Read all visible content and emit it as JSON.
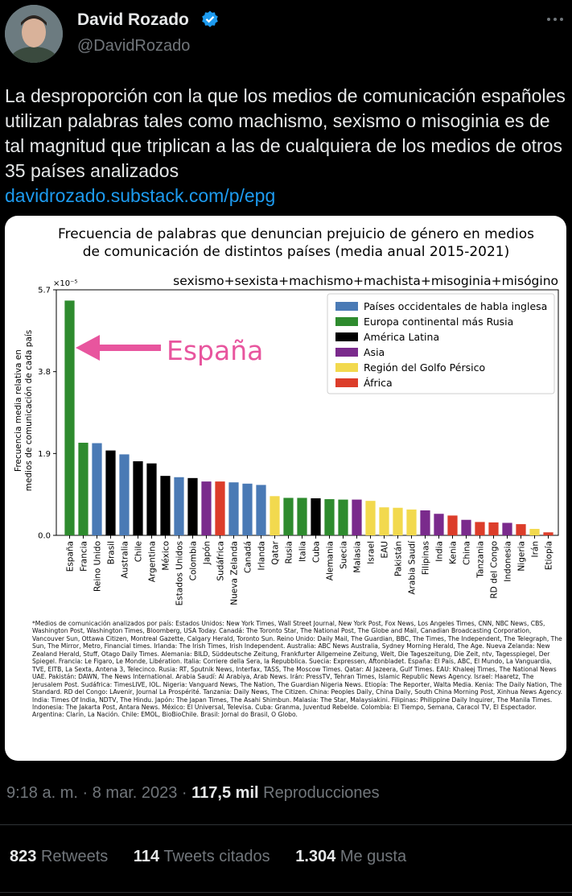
{
  "header": {
    "display_name": "David Rozado",
    "handle": "@DavidRozado",
    "avatar_icon": "avatar-photo",
    "verified_icon": "verified-badge-icon",
    "more_icon": "more-options-icon"
  },
  "tweet": {
    "text": "La desproporción con la que los medios de comunicación españoles utilizan palabras tales como machismo, sexismo o misoginia es de tal magnitud que triplican a las de cualquiera de los medios de otros 35 países analizados",
    "link": "davidrozado.substack.com/p/epg",
    "link_color": "#1d9bf0"
  },
  "chart_data": {
    "type": "bar",
    "title_line1": "Frecuencia de palabras que denuncian prejuicio de género en medios",
    "title_line2": "de comunicación de distintos países (media anual 2015-2021)",
    "subtitle": "sexismo+sexista+machismo+machista+misoginia+misógino",
    "ylabel_line1": "Frecuencia media relativa en",
    "ylabel_line2": "medios de comunicación de cada país",
    "yexp": "×10⁻⁵",
    "yticks": [
      "0.0",
      "1.9",
      "3.8",
      "5.7"
    ],
    "ylim": [
      0,
      5.7
    ],
    "annotation": "España",
    "categories": [
      "España",
      "Francia",
      "Reino Unido",
      "Brasil",
      "Australia",
      "Chile",
      "Argentina",
      "México",
      "Estados Unidos",
      "Colombia",
      "Japón",
      "Sudáfrica",
      "Nueva Zelanda",
      "Canadá",
      "Irlanda",
      "Qatar",
      "Rusia",
      "Italia",
      "Cuba",
      "Alemania",
      "Suecia",
      "Malasia",
      "Israel",
      "EAU",
      "Pakistán",
      "Arabia Saudí",
      "Filipinas",
      "India",
      "Kenia",
      "China",
      "Tanzania",
      "RD del Congo",
      "Indonesia",
      "Nigeria",
      "Irán",
      "Etiopía"
    ],
    "values": [
      5.45,
      2.15,
      2.14,
      1.97,
      1.88,
      1.72,
      1.67,
      1.38,
      1.35,
      1.33,
      1.25,
      1.25,
      1.23,
      1.2,
      1.17,
      0.91,
      0.87,
      0.87,
      0.86,
      0.84,
      0.83,
      0.83,
      0.8,
      0.65,
      0.64,
      0.6,
      0.58,
      0.5,
      0.46,
      0.36,
      0.31,
      0.3,
      0.29,
      0.26,
      0.15,
      0.07
    ],
    "groups": [
      1,
      1,
      0,
      2,
      0,
      2,
      2,
      2,
      0,
      2,
      3,
      5,
      0,
      0,
      0,
      4,
      1,
      1,
      2,
      1,
      1,
      3,
      4,
      4,
      4,
      4,
      3,
      3,
      5,
      3,
      5,
      5,
      3,
      5,
      4,
      5
    ],
    "legend": [
      {
        "label": "Países occidentales de habla inglesa",
        "color": "#4a7ab5"
      },
      {
        "label": "Europa continental más Rusia",
        "color": "#2e8b2e"
      },
      {
        "label": "América Latina",
        "color": "#000000"
      },
      {
        "label": "Asia",
        "color": "#7a2a8c"
      },
      {
        "label": "Región del Golfo Pérsico",
        "color": "#f2d94e"
      },
      {
        "label": "África",
        "color": "#dc3d2a"
      }
    ],
    "legend_position": "upper-right",
    "annotation_color": "#e8559e"
  },
  "footnote": "*Medios de comunicación analizados por país: Estados Unidos: New York Times, Wall Street Journal, New York Post, Fox News, Los Angeles Times, CNN, NBC News, CBS, Washington Post, Washington Times, Bloomberg, USA Today. Canadá: The Toronto Star, The National Post, The Globe and Mail, Canadian Broadcasting Corporation, Vancouver Sun, Ottawa Citizen, Montreal Gazette, Calgary Herald, Toronto Sun. Reino Unido: Daily Mail, The Guardian, BBC, The Times, The Independent, The Telegraph, The Sun, The Mirror, Metro, Financial times. Irlanda: The Irish Times, Irish Independent. Australia: ABC News Australia, Sydney Morning Herald, The Age. Nueva Zelanda: New Zealand Herald, Stuff, Otago Daily Times. Alemania: BILD, Süddeutsche Zeitung, Frankfurter Allgemeine Zeitung, Welt, Die Tageszeitung, Die Zeit, ntv, Tagesspiegel, Der Spiegel. Francia: Le Figaro, Le Monde, Libération. Italia: Corriere della Sera, la Repubblica. Suecia: Expressen, Aftonbladet. España: El País, ABC, El Mundo, La Vanguardia, TVE, EITB, La Sexta, Antena 3, Telecinco. Rusia: RT, Sputnik News, Interfax, TASS, The Moscow Times. Qatar: Al Jazeera, Gulf Times. EAU: Khaleej Times, The National News UAE. Pakistán: DAWN, The News International. Arabia Saudí: Al Arabiya, Arab News. Irán: PressTV, Tehran Times, Islamic Republic News Agency. Israel: Haaretz, The Jerusalem Post. Sudáfrica: TimesLIVE, IOL. Nigeria: Vanguard News, The Nation, The Guardian Nigeria News. Etiopía: The Reporter, Walta Media. Kenia: The Daily Nation, The Standard. RD del Congo: LAvenir, Journal La Prospérité. Tanzania: Daily News, The Citizen. China: Peoples Daily, China Daily, South China Morning Post, Xinhua News Agency. India: Times Of India, NDTV, The Hindu. Japón: The Japan Times, The Asahi Shimbun. Malasia: The Star, Malaysiakini. Filipinas: Philippine Daily Inquirer, The Manila Times. Indonesia: The Jakarta Post, Antara News. México: El Universal, Televisa. Cuba: Granma, Juventud Rebelde. Colombia: El Tiempo, Semana, Caracol TV, El Espectador. Argentina: Clarín, La Nación. Chile: EMOL, BioBioChile. Brasil: Jornal do Brasil, O Globo.",
  "meta": {
    "time": "9:18 a. m.",
    "sep1": "·",
    "date": "8 mar. 2023",
    "sep2": "·",
    "views": "117,5 mil",
    "views_label": "Reproducciones"
  },
  "stats": {
    "retweets": "823",
    "retweets_label": "Retweets",
    "quotes": "114",
    "quotes_label": "Tweets citados",
    "likes": "1.304",
    "likes_label": "Me gusta"
  },
  "colors": {
    "background": "#000000",
    "secondary_text": "#71767b",
    "primary_text": "#e7e9ea"
  }
}
